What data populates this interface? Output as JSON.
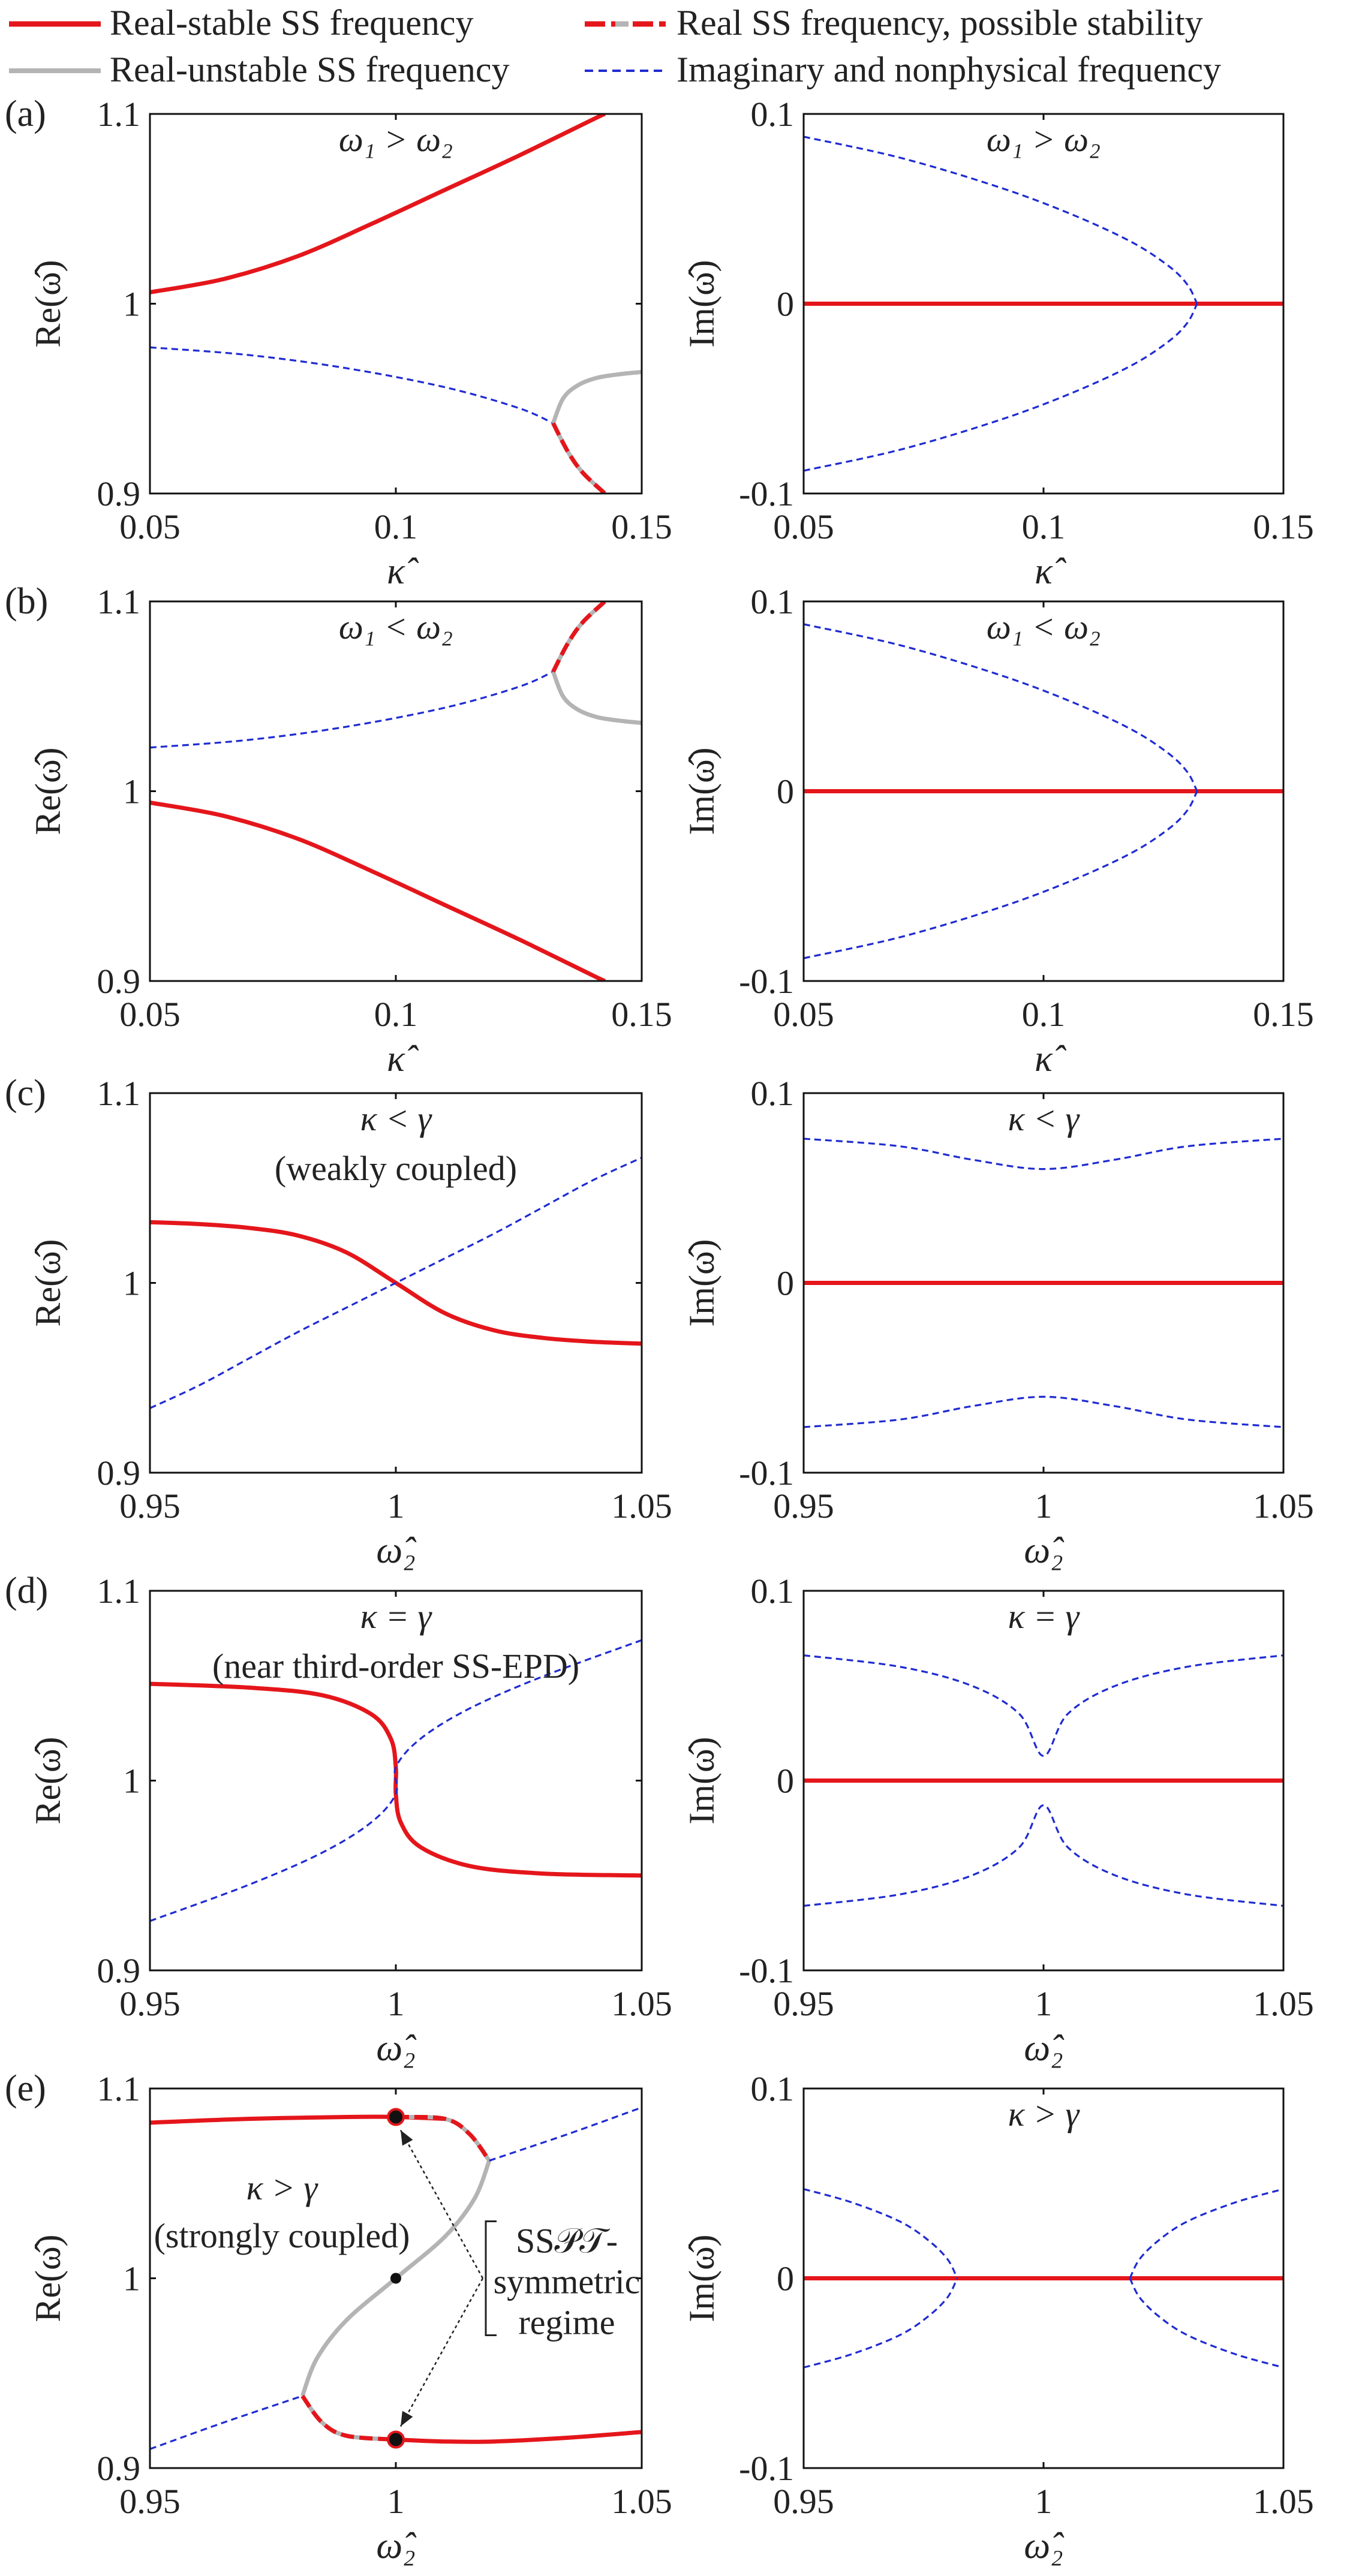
{
  "legend": {
    "stable": "Real-stable SS frequency",
    "possible": "Real SS frequency, possible stability",
    "unstable": "Real-unstable SS frequency",
    "imag": "Imaginary and nonphysical frequency"
  },
  "colors": {
    "red": "#e4161b",
    "gray": "#b4b4b4",
    "blue": "#1f2bd1"
  },
  "chart_data": [
    {
      "id": "a-re",
      "type": "line",
      "panel_label": "(a)",
      "ylabel": "Re(ω̂)",
      "xlabel": "κ̂",
      "xlim": [
        0.05,
        0.15
      ],
      "ylim": [
        0.9,
        1.1
      ],
      "xticks": [
        "0.05",
        "0.1",
        "0.15"
      ],
      "yticks": [
        "0.9",
        "1",
        "1.1"
      ],
      "annotation": [
        "ω₁ > ω₂"
      ],
      "series": [
        {
          "name": "stable",
          "x": [
            0.05,
            0.065,
            0.08,
            0.095,
            0.11,
            0.125,
            0.14,
            0.1425
          ],
          "y": [
            1.006,
            1.013,
            1.025,
            1.042,
            1.06,
            1.078,
            1.097,
            1.1
          ]
        },
        {
          "name": "imag",
          "x": [
            0.05,
            0.07,
            0.09,
            0.11,
            0.125,
            0.132
          ],
          "y": [
            0.977,
            0.973,
            0.966,
            0.956,
            0.945,
            0.937
          ]
        },
        {
          "name": "unstable",
          "x": [
            0.132,
            0.134,
            0.137,
            0.141,
            0.146,
            0.15
          ],
          "y": [
            0.937,
            0.95,
            0.957,
            0.961,
            0.963,
            0.964
          ]
        },
        {
          "name": "possible",
          "x": [
            0.132,
            0.135,
            0.138,
            0.1425
          ],
          "y": [
            0.937,
            0.922,
            0.911,
            0.9
          ]
        }
      ]
    },
    {
      "id": "a-im",
      "type": "line",
      "ylabel": "Im(ω̂)",
      "xlabel": "κ̂",
      "xlim": [
        0.05,
        0.15
      ],
      "ylim": [
        -0.1,
        0.1
      ],
      "xticks": [
        "0.05",
        "0.1",
        "0.15"
      ],
      "yticks": [
        "-0.1",
        "0",
        "0.1"
      ],
      "annotation": [
        "ω₁ > ω₂"
      ],
      "series": [
        {
          "name": "stable",
          "x": [
            0.05,
            0.15
          ],
          "y": [
            0,
            0
          ]
        },
        {
          "name": "imag",
          "x": [
            0.05,
            0.07,
            0.09,
            0.105,
            0.118,
            0.126,
            0.13,
            0.132
          ],
          "y": [
            0.088,
            0.077,
            0.062,
            0.048,
            0.033,
            0.02,
            0.01,
            0
          ]
        },
        {
          "name": "imag",
          "x": [
            0.05,
            0.07,
            0.09,
            0.105,
            0.118,
            0.126,
            0.13,
            0.132
          ],
          "y": [
            -0.088,
            -0.077,
            -0.062,
            -0.048,
            -0.033,
            -0.02,
            -0.01,
            0
          ]
        }
      ]
    },
    {
      "id": "b-re",
      "type": "line",
      "panel_label": "(b)",
      "ylabel": "Re(ω̂)",
      "xlabel": "κ̂",
      "xlim": [
        0.05,
        0.15
      ],
      "ylim": [
        0.9,
        1.1
      ],
      "xticks": [
        "0.05",
        "0.1",
        "0.15"
      ],
      "yticks": [
        "0.9",
        "1",
        "1.1"
      ],
      "annotation": [
        "ω₁ < ω₂"
      ],
      "series": [
        {
          "name": "stable",
          "x": [
            0.05,
            0.065,
            0.08,
            0.095,
            0.11,
            0.125,
            0.14,
            0.1425
          ],
          "y": [
            0.994,
            0.987,
            0.975,
            0.958,
            0.94,
            0.922,
            0.903,
            0.9
          ]
        },
        {
          "name": "imag",
          "x": [
            0.05,
            0.07,
            0.09,
            0.11,
            0.125,
            0.132
          ],
          "y": [
            1.023,
            1.027,
            1.034,
            1.044,
            1.055,
            1.063
          ]
        },
        {
          "name": "unstable",
          "x": [
            0.132,
            0.134,
            0.137,
            0.141,
            0.146,
            0.15
          ],
          "y": [
            1.063,
            1.05,
            1.043,
            1.039,
            1.037,
            1.036
          ]
        },
        {
          "name": "possible",
          "x": [
            0.132,
            0.135,
            0.138,
            0.1425
          ],
          "y": [
            1.063,
            1.078,
            1.089,
            1.1
          ]
        }
      ]
    },
    {
      "id": "b-im",
      "type": "line",
      "ylabel": "Im(ω̂)",
      "xlabel": "κ̂",
      "xlim": [
        0.05,
        0.15
      ],
      "ylim": [
        -0.1,
        0.1
      ],
      "xticks": [
        "0.05",
        "0.1",
        "0.15"
      ],
      "yticks": [
        "-0.1",
        "0",
        "0.1"
      ],
      "annotation": [
        "ω₁ < ω₂"
      ],
      "series": [
        {
          "name": "stable",
          "x": [
            0.05,
            0.15
          ],
          "y": [
            0,
            0
          ]
        },
        {
          "name": "imag",
          "x": [
            0.05,
            0.07,
            0.09,
            0.105,
            0.118,
            0.126,
            0.13,
            0.132
          ],
          "y": [
            0.088,
            0.077,
            0.062,
            0.048,
            0.033,
            0.02,
            0.01,
            0
          ]
        },
        {
          "name": "imag",
          "x": [
            0.05,
            0.07,
            0.09,
            0.105,
            0.118,
            0.126,
            0.13,
            0.132
          ],
          "y": [
            -0.088,
            -0.077,
            -0.062,
            -0.048,
            -0.033,
            -0.02,
            -0.01,
            0
          ]
        }
      ]
    },
    {
      "id": "c-re",
      "type": "line",
      "panel_label": "(c)",
      "ylabel": "Re(ω̂)",
      "xlabel": "ω̂₂",
      "xlim": [
        0.95,
        1.05
      ],
      "ylim": [
        0.9,
        1.1
      ],
      "xticks": [
        "0.95",
        "1",
        "1.05"
      ],
      "yticks": [
        "0.9",
        "1",
        "1.1"
      ],
      "annotation": [
        "κ < γ",
        "(weakly coupled)"
      ],
      "series": [
        {
          "name": "stable",
          "x": [
            0.95,
            0.96,
            0.97,
            0.98,
            0.99,
            1.0,
            1.01,
            1.02,
            1.03,
            1.04,
            1.05
          ],
          "y": [
            1.032,
            1.031,
            1.029,
            1.025,
            1.016,
            1.0,
            0.984,
            0.975,
            0.971,
            0.969,
            0.968
          ]
        },
        {
          "name": "imag",
          "x": [
            0.95,
            0.96,
            0.97,
            0.98,
            0.99,
            1.0,
            1.01,
            1.02,
            1.03,
            1.04,
            1.05
          ],
          "y": [
            0.934,
            0.946,
            0.96,
            0.974,
            0.987,
            1.0,
            1.013,
            1.026,
            1.04,
            1.054,
            1.066
          ]
        }
      ]
    },
    {
      "id": "c-im",
      "type": "line",
      "ylabel": "Im(ω̂)",
      "xlabel": "ω̂₂",
      "xlim": [
        0.95,
        1.05
      ],
      "ylim": [
        -0.1,
        0.1
      ],
      "xticks": [
        "0.95",
        "1",
        "1.05"
      ],
      "yticks": [
        "-0.1",
        "0",
        "0.1"
      ],
      "annotation": [
        "κ < γ"
      ],
      "series": [
        {
          "name": "stable",
          "x": [
            0.95,
            1.05
          ],
          "y": [
            0,
            0
          ]
        },
        {
          "name": "imag",
          "x": [
            0.95,
            0.97,
            0.985,
            1.0,
            1.015,
            1.03,
            1.05
          ],
          "y": [
            0.076,
            0.072,
            0.065,
            0.06,
            0.065,
            0.072,
            0.076
          ]
        },
        {
          "name": "imag",
          "x": [
            0.95,
            0.97,
            0.985,
            1.0,
            1.015,
            1.03,
            1.05
          ],
          "y": [
            -0.076,
            -0.072,
            -0.065,
            -0.06,
            -0.065,
            -0.072,
            -0.076
          ]
        }
      ]
    },
    {
      "id": "d-re",
      "type": "line",
      "panel_label": "(d)",
      "ylabel": "Re(ω̂)",
      "xlabel": "ω̂₂",
      "xlim": [
        0.95,
        1.05
      ],
      "ylim": [
        0.9,
        1.1
      ],
      "xticks": [
        "0.95",
        "1",
        "1.05"
      ],
      "yticks": [
        "0.9",
        "1",
        "1.1"
      ],
      "annotation": [
        "κ = γ",
        "(near third-order SS-EPD)"
      ],
      "series": [
        {
          "name": "stable",
          "x": [
            0.95,
            0.97,
            0.985,
            0.995,
            0.999,
            1.0,
            1.0,
            1.001,
            1.005,
            1.015,
            1.03,
            1.05
          ],
          "y": [
            1.051,
            1.049,
            1.045,
            1.035,
            1.022,
            1.007,
            0.993,
            0.978,
            0.965,
            0.955,
            0.951,
            0.95
          ]
        },
        {
          "name": "imag",
          "x": [
            0.95,
            0.97,
            0.985,
            0.995,
            1.0,
            1.0,
            1.005,
            1.015,
            1.03,
            1.05
          ],
          "y": [
            0.926,
            0.945,
            0.962,
            0.978,
            0.993,
            1.007,
            1.022,
            1.038,
            1.055,
            1.074
          ]
        }
      ]
    },
    {
      "id": "d-im",
      "type": "line",
      "ylabel": "Im(ω̂)",
      "xlabel": "ω̂₂",
      "xlim": [
        0.95,
        1.05
      ],
      "ylim": [
        -0.1,
        0.1
      ],
      "xticks": [
        "0.95",
        "1",
        "1.05"
      ],
      "yticks": [
        "-0.1",
        "0",
        "0.1"
      ],
      "annotation": [
        "κ = γ"
      ],
      "series": [
        {
          "name": "stable",
          "x": [
            0.95,
            1.05
          ],
          "y": [
            0,
            0
          ]
        },
        {
          "name": "imag",
          "x": [
            0.95,
            0.97,
            0.985,
            0.995,
            1.0,
            1.005,
            1.015,
            1.03,
            1.05
          ],
          "y": [
            0.066,
            0.06,
            0.05,
            0.035,
            0.013,
            0.035,
            0.05,
            0.06,
            0.066
          ]
        },
        {
          "name": "imag",
          "x": [
            0.95,
            0.97,
            0.985,
            0.995,
            1.0,
            1.005,
            1.015,
            1.03,
            1.05
          ],
          "y": [
            -0.066,
            -0.06,
            -0.05,
            -0.035,
            -0.013,
            -0.035,
            -0.05,
            -0.06,
            -0.066
          ]
        }
      ]
    },
    {
      "id": "e-re",
      "type": "line",
      "panel_label": "(e)",
      "ylabel": "Re(ω̂)",
      "xlabel": "ω̂₂",
      "xlim": [
        0.95,
        1.05
      ],
      "ylim": [
        0.9,
        1.1
      ],
      "xticks": [
        "0.95",
        "1",
        "1.05"
      ],
      "yticks": [
        "0.9",
        "1",
        "1.1"
      ],
      "annotation": [
        "κ > γ",
        "(strongly coupled)"
      ],
      "bracket_label": [
        "SS𝒫𝒯-",
        "symmetric",
        "regime"
      ],
      "series": [
        {
          "name": "stable",
          "x": [
            0.95,
            0.97,
            0.99,
            1.0,
            1.01
          ],
          "y": [
            1.082,
            1.084,
            1.085,
            1.085,
            1.084
          ]
        },
        {
          "name": "possible",
          "x": [
            1.0,
            1.01,
            1.015,
            1.019
          ],
          "y": [
            1.085,
            1.084,
            1.076,
            1.062
          ]
        },
        {
          "name": "unstable",
          "x": [
            1.019,
            1.016,
            1.01,
            1.0,
            0.99,
            0.984,
            0.981
          ],
          "y": [
            1.062,
            1.042,
            1.022,
            1.0,
            0.978,
            0.958,
            0.938
          ]
        },
        {
          "name": "possible",
          "x": [
            0.981,
            0.985,
            0.99,
            1.0
          ],
          "y": [
            0.938,
            0.924,
            0.917,
            0.915
          ]
        },
        {
          "name": "stable",
          "x": [
            1.0,
            1.01,
            1.02,
            1.035,
            1.05
          ],
          "y": [
            0.915,
            0.914,
            0.914,
            0.916,
            0.919
          ]
        },
        {
          "name": "imag",
          "x": [
            0.95,
            0.965,
            0.981
          ],
          "y": [
            0.91,
            0.924,
            0.938
          ]
        },
        {
          "name": "imag",
          "x": [
            1.019,
            1.035,
            1.05
          ],
          "y": [
            1.062,
            1.076,
            1.09
          ]
        }
      ],
      "markers": [
        {
          "x": 1.0,
          "y": 1.085
        },
        {
          "x": 1.0,
          "y": 1.0
        },
        {
          "x": 1.0,
          "y": 0.915
        }
      ]
    },
    {
      "id": "e-im",
      "type": "line",
      "ylabel": "Im(ω̂)",
      "xlabel": "ω̂₂",
      "xlim": [
        0.95,
        1.05
      ],
      "ylim": [
        -0.1,
        0.1
      ],
      "xticks": [
        "0.95",
        "1",
        "1.05"
      ],
      "yticks": [
        "-0.1",
        "0",
        "0.1"
      ],
      "annotation": [
        "κ > γ"
      ],
      "series": [
        {
          "name": "stable",
          "x": [
            0.95,
            1.05
          ],
          "y": [
            0,
            0
          ]
        },
        {
          "name": "imag",
          "x": [
            0.95,
            0.96,
            0.97,
            0.976,
            0.98,
            0.982
          ],
          "y": [
            0.047,
            0.04,
            0.03,
            0.02,
            0.01,
            0
          ]
        },
        {
          "name": "imag",
          "x": [
            0.95,
            0.96,
            0.97,
            0.976,
            0.98,
            0.982
          ],
          "y": [
            -0.047,
            -0.04,
            -0.03,
            -0.02,
            -0.01,
            0
          ]
        },
        {
          "name": "imag",
          "x": [
            1.018,
            1.02,
            1.024,
            1.03,
            1.04,
            1.05
          ],
          "y": [
            0,
            0.01,
            0.02,
            0.03,
            0.04,
            0.047
          ]
        },
        {
          "name": "imag",
          "x": [
            1.018,
            1.02,
            1.024,
            1.03,
            1.04,
            1.05
          ],
          "y": [
            0,
            -0.01,
            -0.02,
            -0.03,
            -0.04,
            -0.047
          ]
        }
      ]
    }
  ]
}
